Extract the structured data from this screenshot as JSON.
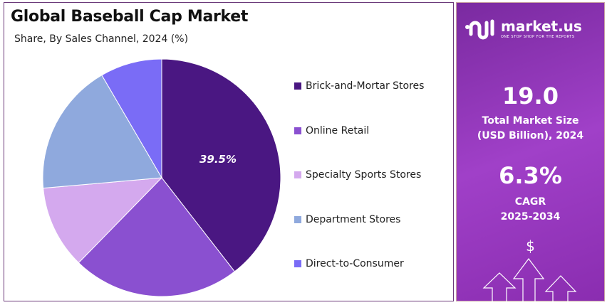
{
  "chart_data": {
    "type": "pie",
    "title": "Global Baseball Cap Market",
    "subtitle": "Share, By Sales Channel, 2024 (%)",
    "legend_position": "right",
    "slices": [
      {
        "label": "Brick-and-Mortar Stores",
        "value": 39.5,
        "color": "#4a1782",
        "data_label": "39.5%"
      },
      {
        "label": "Online Retail",
        "value": 22.8,
        "color": "#8a50d0"
      },
      {
        "label": "Specialty Sports Stores",
        "value": 11.3,
        "color": "#d4a9ee"
      },
      {
        "label": "Department Stores",
        "value": 18.0,
        "color": "#8fa9dd"
      },
      {
        "label": "Direct-to-Consumer",
        "value": 8.4,
        "color": "#7a6cf6"
      }
    ]
  },
  "panel": {
    "logo": "market.us",
    "tagline": "ONE STOP SHOP FOR THE REPORTS",
    "market_size": "19.0",
    "market_size_label_1": "Total Market Size",
    "market_size_label_2": "(USD Billion), 2024",
    "cagr": "6.3%",
    "cagr_label": "CAGR",
    "cagr_period": "2025-2034",
    "dollar": "$"
  }
}
